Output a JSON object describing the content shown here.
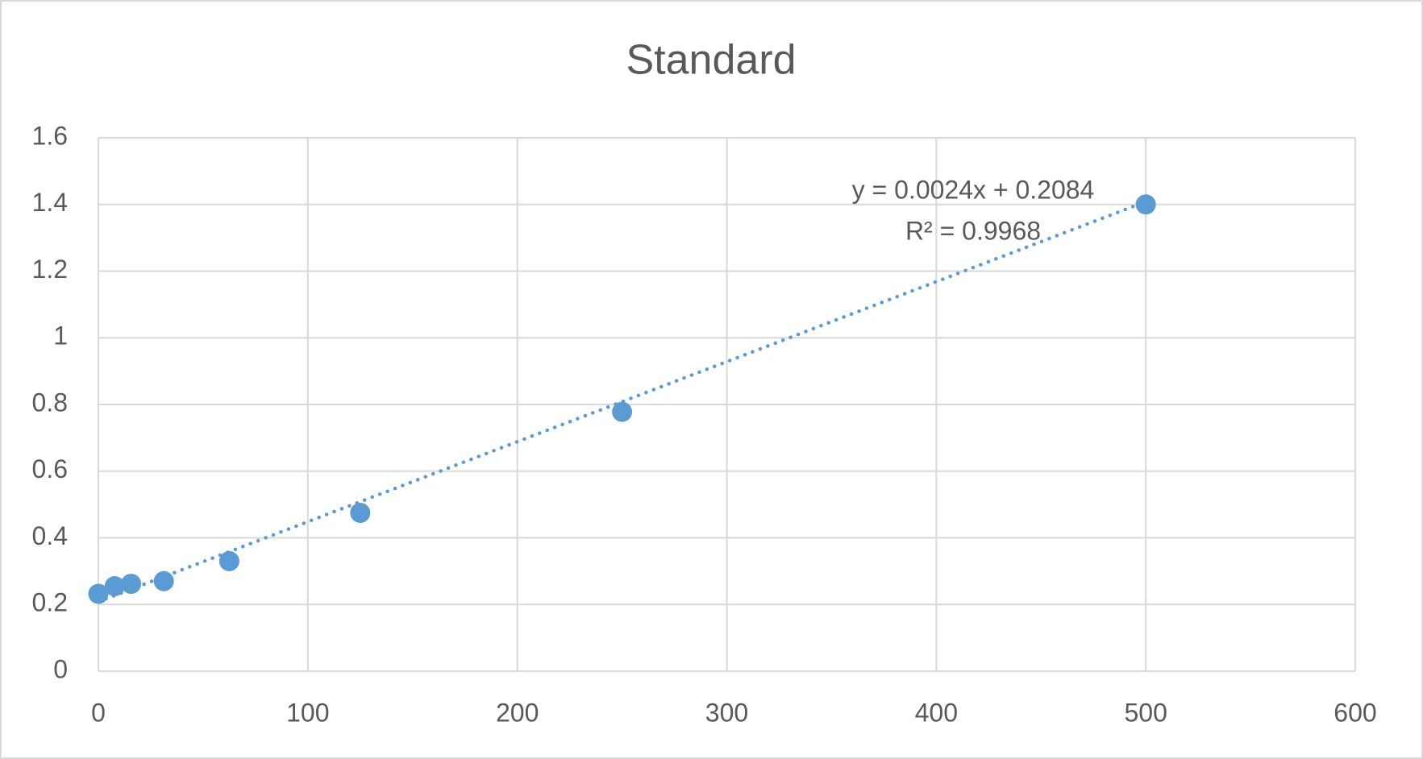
{
  "chart_data": {
    "type": "scatter",
    "title": "Standard",
    "x": [
      0,
      7.8125,
      15.625,
      31.25,
      62.5,
      125,
      250,
      500
    ],
    "values": [
      0.232,
      0.255,
      0.262,
      0.27,
      0.33,
      0.475,
      0.778,
      1.4
    ],
    "color": "#5b9bd5",
    "xlim": [
      0,
      600
    ],
    "xticks": [
      0,
      100,
      200,
      300,
      400,
      500,
      600
    ],
    "ylim": [
      0,
      1.6
    ],
    "yticks": [
      0,
      0.2,
      0.4,
      0.6,
      0.8,
      1,
      1.2,
      1.4,
      1.6
    ],
    "grid": true,
    "trendline": {
      "slope": 0.0024,
      "intercept": 0.2084,
      "equation": "y = 0.0024x + 0.2084",
      "r_squared": "R² = 0.9968"
    }
  }
}
